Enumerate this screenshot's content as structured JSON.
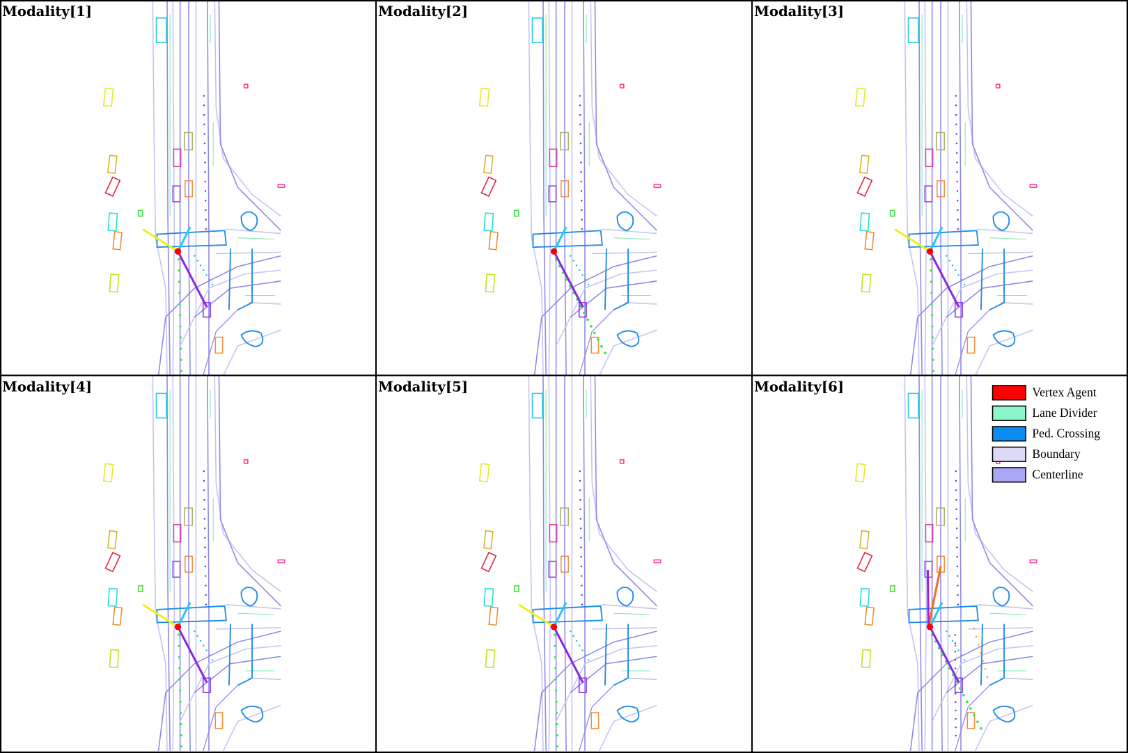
{
  "panels": [
    {
      "title": "Modality[1]"
    },
    {
      "title": "Modality[2]"
    },
    {
      "title": "Modality[3]"
    },
    {
      "title": "Modality[4]"
    },
    {
      "title": "Modality[5]"
    },
    {
      "title": "Modality[6]"
    }
  ],
  "legend": {
    "items": [
      {
        "label": "Vertex Agent",
        "color": "#ff0000"
      },
      {
        "label": "Lane Divider",
        "color": "#8cf5cc"
      },
      {
        "label": "Ped. Crossing",
        "color": "#0a8cf0"
      },
      {
        "label": "Boundary",
        "color": "#dcdaf7"
      },
      {
        "label": "Centerline",
        "color": "#a8a6f5"
      }
    ]
  }
}
